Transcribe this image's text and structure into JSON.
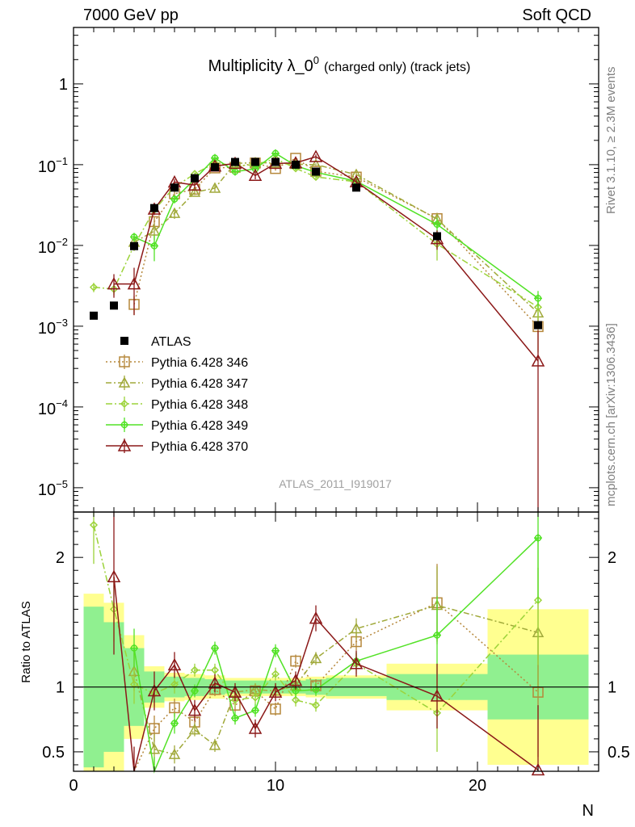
{
  "header": {
    "left": "7000 GeV pp",
    "right": "Soft QCD"
  },
  "side_labels": {
    "rivet": "Rivet 3.1.10, ≥ 2.3M events",
    "mcplots": "mcplots.cern.ch [arXiv:1306.3436]"
  },
  "chart_data": {
    "type": "scatter",
    "title_main": "Multiplicity λ_0",
    "title_sup": "0",
    "title_suffix": "(charged only) (track jets)",
    "analysis_label": "ATLAS_2011_I919017",
    "xlabel": "N",
    "ratio_ylabel": "Ratio to ATLAS",
    "xlim": [
      0,
      26
    ],
    "ylim_main": [
      5e-06,
      5
    ],
    "ylim_ratio": [
      0.35,
      2.35
    ],
    "yscale_main": "log",
    "x_ticks": [
      0,
      10,
      20
    ],
    "main_y_ticks": [
      {
        "v": 1,
        "label": "1",
        "sup": ""
      },
      {
        "v": 0.1,
        "label": "10",
        "sup": "−1"
      },
      {
        "v": 0.01,
        "label": "10",
        "sup": "−2"
      },
      {
        "v": 0.001,
        "label": "10",
        "sup": "−3"
      },
      {
        "v": 0.0001,
        "label": "10",
        "sup": "−4"
      },
      {
        "v": 1e-05,
        "label": "10",
        "sup": "−5"
      }
    ],
    "ratio_y_ticks": [
      {
        "v": 0.5,
        "label": "0.5"
      },
      {
        "v": 1,
        "label": "1"
      },
      {
        "v": 2,
        "label": "2"
      }
    ],
    "legend_position": "center-left",
    "data": {
      "name": "ATLAS",
      "color": "#000000",
      "x": [
        1,
        2,
        3,
        4,
        5,
        6,
        7,
        8,
        9,
        10,
        11,
        12,
        14,
        18,
        23
      ],
      "xlo": [
        0.5,
        1.5,
        2.5,
        3.5,
        4.5,
        5.5,
        6.5,
        7.5,
        8.5,
        9.5,
        10.5,
        11.5,
        12.5,
        15.5,
        20.5
      ],
      "xhi": [
        1.5,
        2.5,
        3.5,
        4.5,
        5.5,
        6.5,
        7.5,
        8.5,
        9.5,
        10.5,
        11.5,
        12.5,
        15.5,
        20.5,
        25.5
      ],
      "y": [
        0.00135,
        0.0018,
        0.0098,
        0.029,
        0.052,
        0.068,
        0.093,
        0.108,
        0.108,
        0.108,
        0.1,
        0.082,
        0.052,
        0.013,
        0.00103
      ],
      "band_green": [
        0.62,
        0.5,
        0.3,
        0.12,
        0.08,
        0.07,
        0.06,
        0.05,
        0.05,
        0.05,
        0.05,
        0.06,
        0.07,
        0.1,
        0.25
      ],
      "band_yellow": [
        0.72,
        0.65,
        0.4,
        0.16,
        0.11,
        0.1,
        0.09,
        0.07,
        0.07,
        0.07,
        0.07,
        0.08,
        0.09,
        0.18,
        0.6
      ]
    },
    "series": [
      {
        "name": "Pythia 6.428 346",
        "color": "#b5873a",
        "marker": "square",
        "dash": "2,3",
        "x": [
          3,
          4,
          5,
          6,
          7,
          8,
          9,
          10,
          11,
          12,
          14,
          18,
          23
        ],
        "ratio": [
          0.19,
          0.68,
          0.84,
          0.73,
          0.98,
          0.86,
          0.97,
          0.83,
          1.2,
          1.01,
          1.35,
          1.65,
          0.96
        ],
        "ratio_err": [
          0.05,
          0.1,
          0.07,
          0.05,
          0.05,
          0.05,
          0.05,
          0.05,
          0.05,
          0.05,
          0.07,
          0.3,
          0.5
        ]
      },
      {
        "name": "Pythia 6.428 347",
        "color": "#a0a93a",
        "marker": "triangle",
        "dash": "7,3,2,3",
        "x": [
          3,
          4,
          5,
          6,
          7,
          8,
          9,
          10,
          11,
          12,
          14,
          18,
          23
        ],
        "ratio": [
          1.12,
          0.52,
          0.48,
          0.67,
          0.55,
          0.96,
          0.98,
          0.97,
          1.01,
          1.22,
          1.45,
          1.63,
          1.42
        ],
        "ratio_err": [
          0.15,
          0.12,
          0.07,
          0.05,
          0.05,
          0.05,
          0.05,
          0.05,
          0.05,
          0.05,
          0.08,
          0.3,
          0.5
        ]
      },
      {
        "name": "Pythia 6.428 348",
        "color": "#9cd33a",
        "marker": "diamond",
        "dash": "8,3,2,3",
        "x": [
          1,
          2,
          3,
          4,
          5,
          6,
          7,
          8,
          9,
          10,
          11,
          12,
          14,
          18,
          23
        ],
        "ratio": [
          2.25,
          1.6,
          1.02,
          0.95,
          1.02,
          1.13,
          1.13,
          0.9,
          0.92,
          1.1,
          0.9,
          0.86,
          1.18,
          0.8,
          1.67
        ],
        "ratio_err": [
          0.3,
          0.25,
          0.15,
          0.1,
          0.07,
          0.05,
          0.05,
          0.05,
          0.05,
          0.05,
          0.05,
          0.05,
          0.08,
          0.3,
          0.5
        ]
      },
      {
        "name": "Pythia 6.428 349",
        "color": "#52e226",
        "marker": "cross",
        "dash": "",
        "x": [
          3,
          4,
          5,
          6,
          7,
          8,
          9,
          10,
          11,
          12,
          14,
          18,
          23
        ],
        "ratio": [
          1.3,
          0.34,
          0.72,
          0.97,
          1.3,
          0.76,
          0.82,
          1.28,
          0.97,
          0.98,
          1.2,
          1.4,
          2.15
        ],
        "ratio_err": [
          0.15,
          0.12,
          0.08,
          0.05,
          0.05,
          0.05,
          0.05,
          0.05,
          0.05,
          0.05,
          0.07,
          0.3,
          0.5
        ]
      },
      {
        "name": "Pythia 6.428 370",
        "color": "#8b1818",
        "marker": "triangle-open",
        "dash": "",
        "x": [
          2,
          3,
          4,
          5,
          6,
          7,
          8,
          9,
          10,
          11,
          12,
          14,
          18,
          23
        ],
        "ratio": [
          1.85,
          0.34,
          0.97,
          1.17,
          0.82,
          1.03,
          0.96,
          0.68,
          0.96,
          1.05,
          1.53,
          1.18,
          0.93,
          0.36
        ],
        "ratio_err": [
          0.6,
          0.2,
          0.15,
          0.1,
          0.08,
          0.07,
          0.07,
          0.07,
          0.07,
          0.07,
          0.1,
          0.1,
          0.25,
          0.5
        ]
      }
    ]
  }
}
